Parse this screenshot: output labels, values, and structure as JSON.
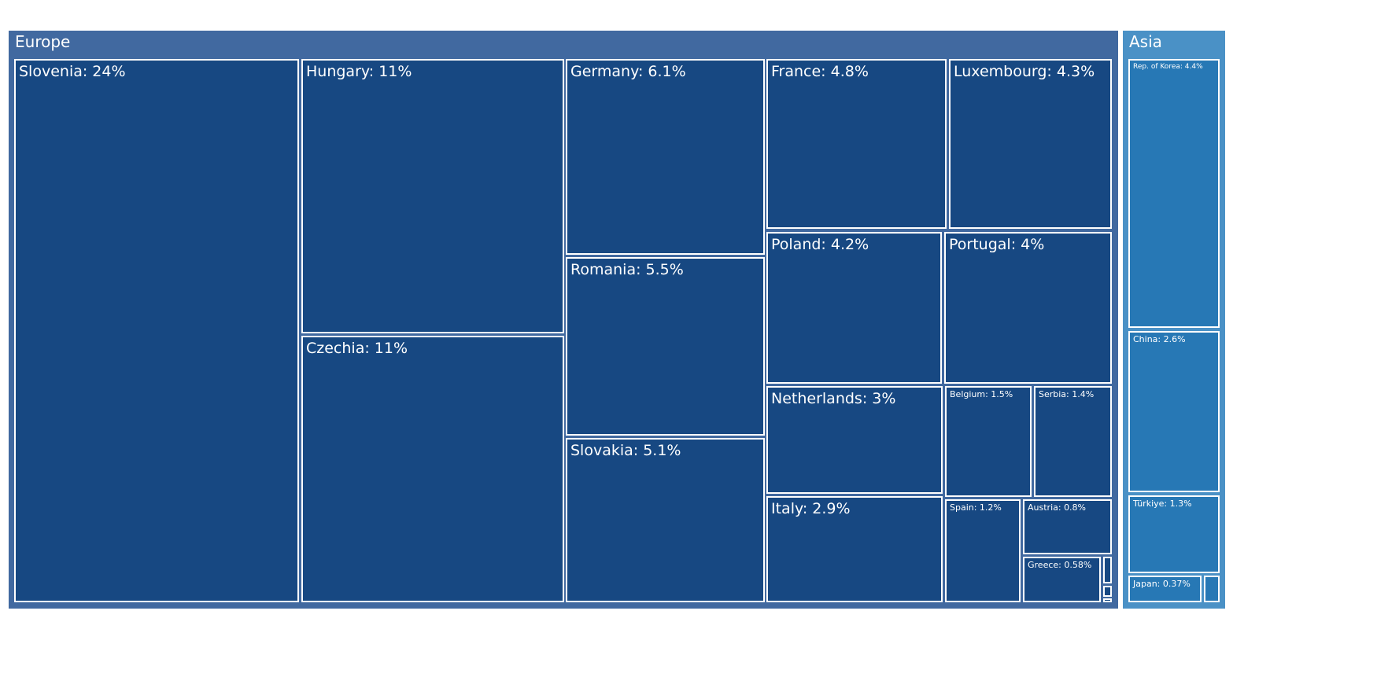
{
  "chart_data": {
    "type": "treemap",
    "groups": [
      {
        "name": "Europe",
        "color": "#4169a0",
        "leaf_color": "#174882",
        "items": [
          {
            "label": "Slovenia: 24%",
            "value": 24
          },
          {
            "label": "Hungary: 11%",
            "value": 11
          },
          {
            "label": "Czechia: 11%",
            "value": 11
          },
          {
            "label": "Germany: 6.1%",
            "value": 6.1
          },
          {
            "label": "Romania: 5.5%",
            "value": 5.5
          },
          {
            "label": "Slovakia: 5.1%",
            "value": 5.1
          },
          {
            "label": "France: 4.8%",
            "value": 4.8
          },
          {
            "label": "Luxembourg: 4.3%",
            "value": 4.3
          },
          {
            "label": "Poland: 4.2%",
            "value": 4.2
          },
          {
            "label": "Portugal: 4%",
            "value": 4
          },
          {
            "label": "Netherlands: 3%",
            "value": 3
          },
          {
            "label": "Italy: 2.9%",
            "value": 2.9
          },
          {
            "label": "Belgium: 1.5%",
            "value": 1.5
          },
          {
            "label": "Serbia: 1.4%",
            "value": 1.4
          },
          {
            "label": "Spain: 1.2%",
            "value": 1.2
          },
          {
            "label": "Austria: 0.8%",
            "value": 0.8
          },
          {
            "label": "Greece: 0.58%",
            "value": 0.58
          },
          {
            "label": "",
            "value": 0.2
          },
          {
            "label": "",
            "value": 0.1
          },
          {
            "label": "",
            "value": 0.05
          }
        ]
      },
      {
        "name": "Asia",
        "color": "#4a91c6",
        "leaf_color": "#2778b5",
        "items": [
          {
            "label": "Rep. of Korea: 4.4%",
            "value": 4.4
          },
          {
            "label": "China: 2.6%",
            "value": 2.6
          },
          {
            "label": "Türkiye: 1.3%",
            "value": 1.3
          },
          {
            "label": "Japan: 0.37%",
            "value": 0.37
          },
          {
            "label": "",
            "value": 0.1
          }
        ]
      }
    ]
  }
}
